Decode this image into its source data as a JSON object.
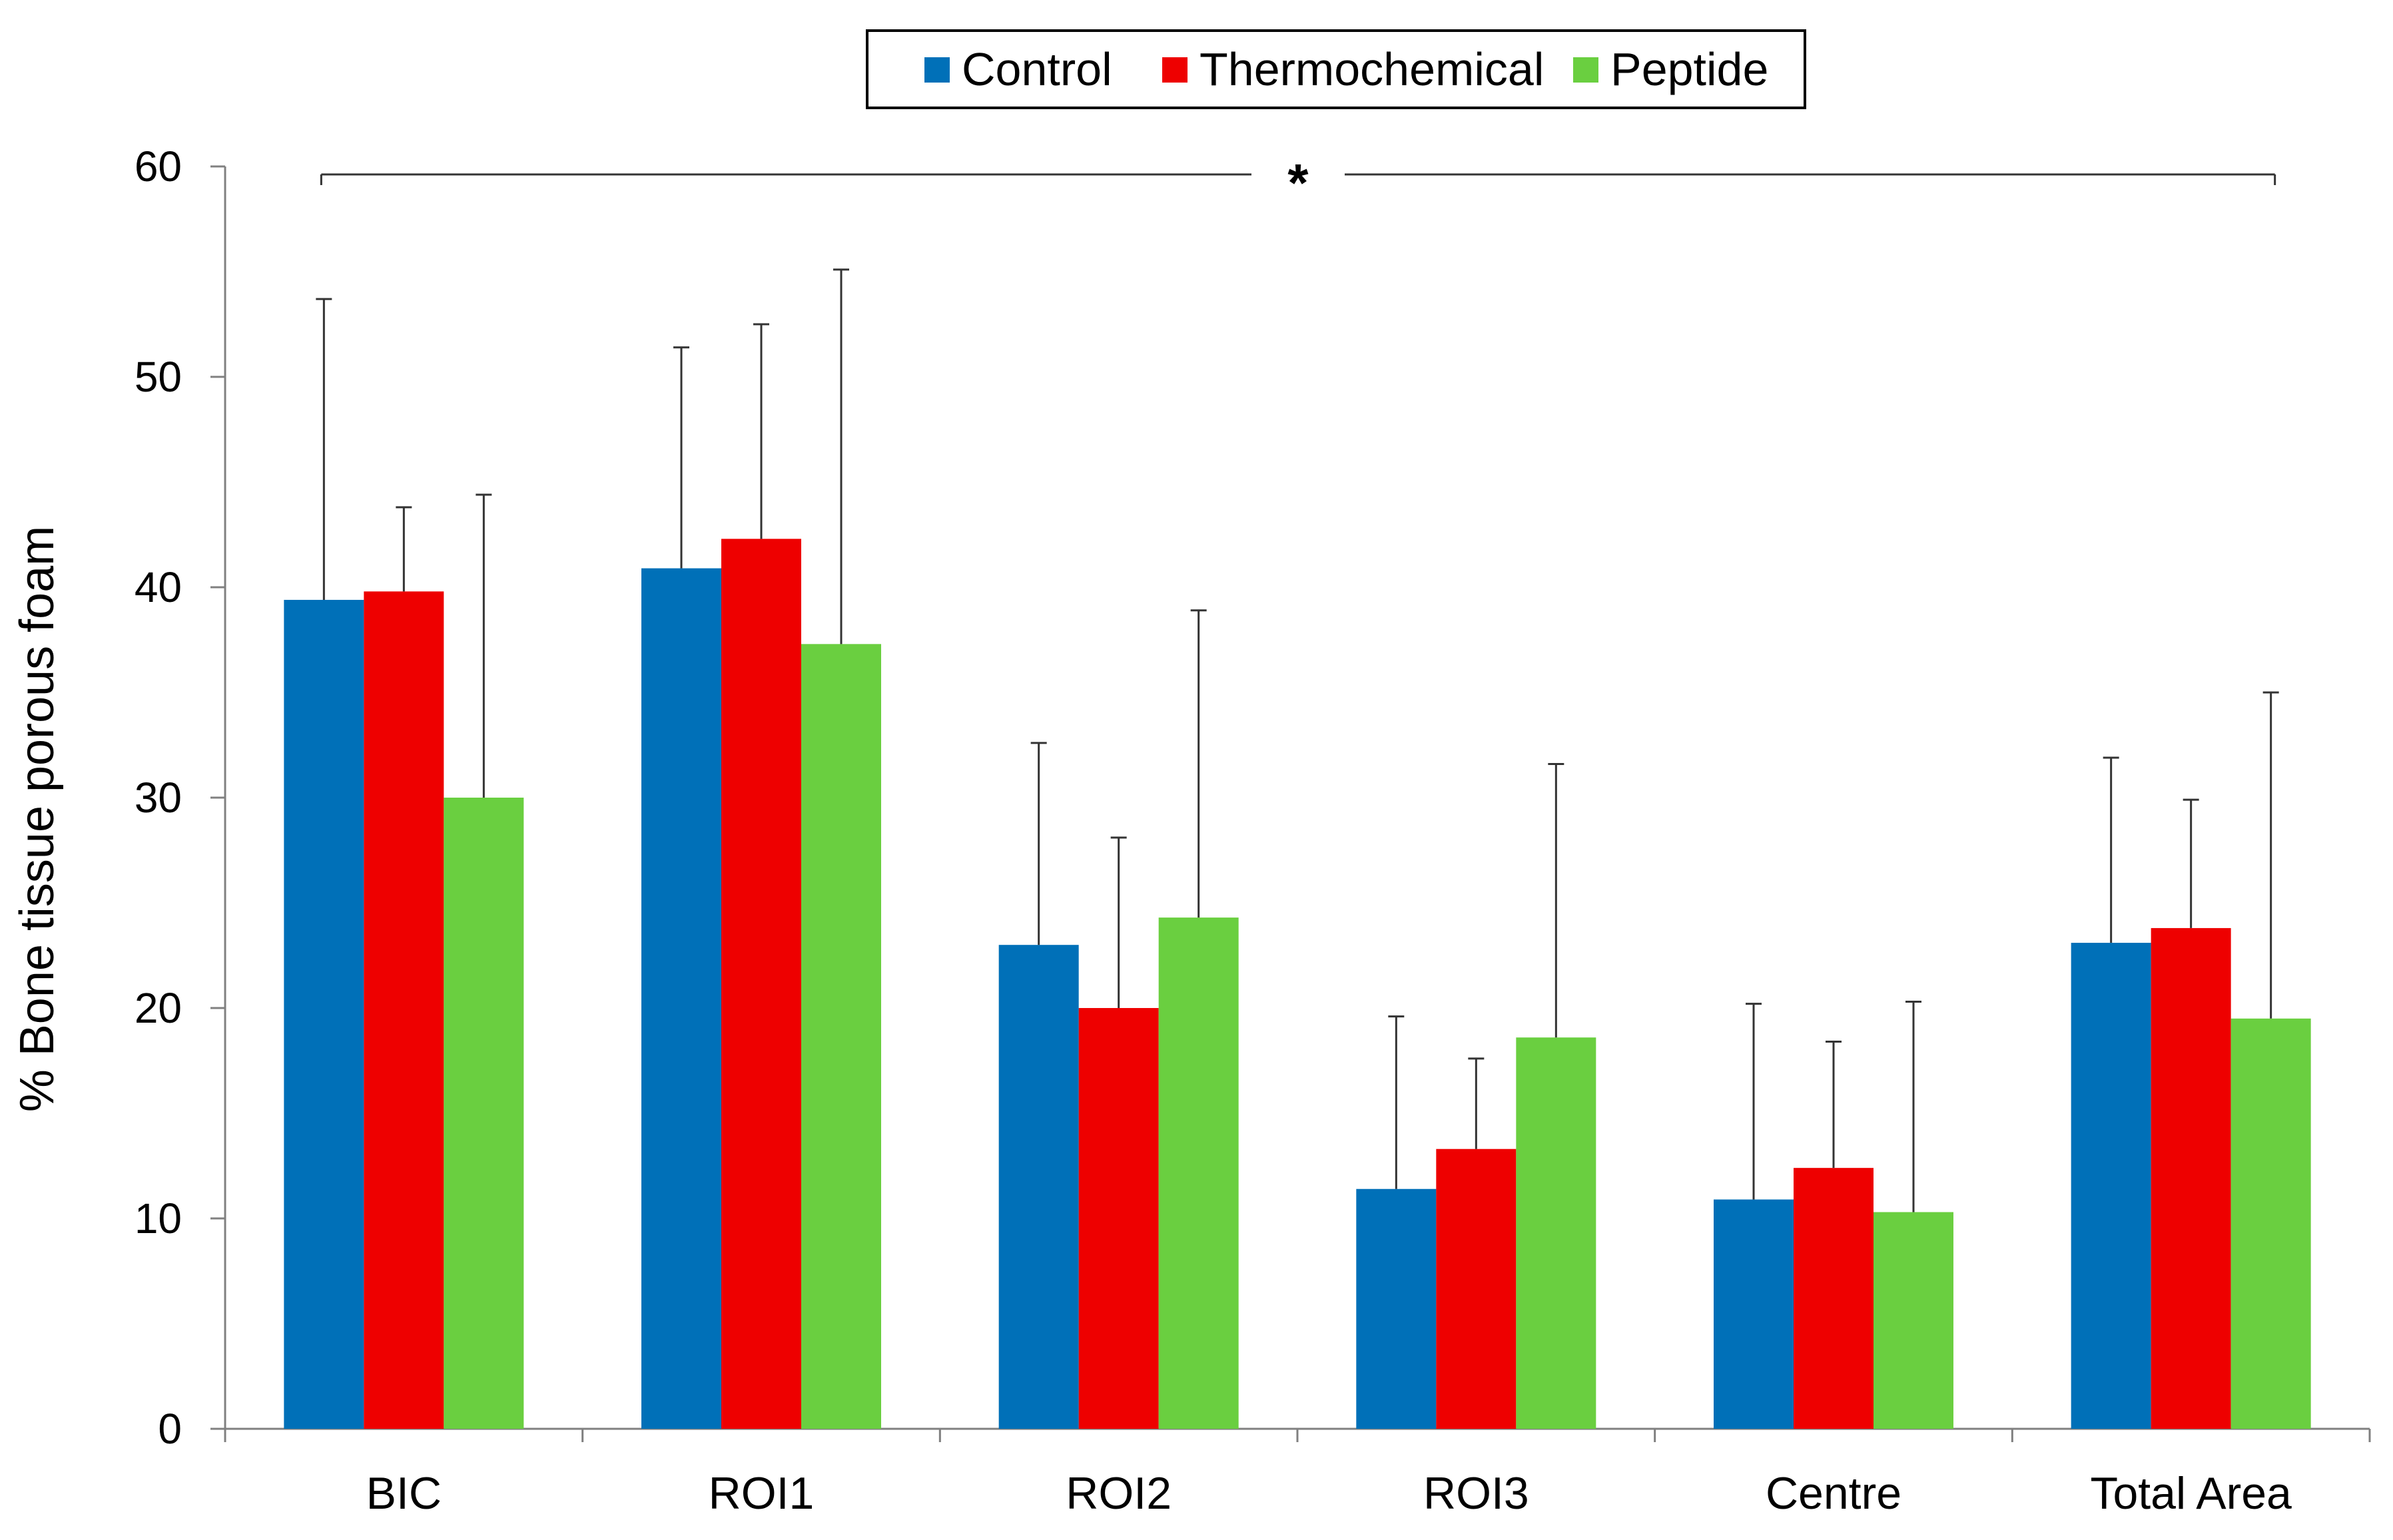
{
  "chart_data": {
    "type": "bar",
    "title": "",
    "xlabel": "",
    "ylabel": "% Bone tissue porous foam",
    "ylim": [
      0,
      60
    ],
    "yticks": [
      0,
      10,
      20,
      30,
      40,
      50,
      60
    ],
    "categories": [
      "BIC",
      "ROI1",
      "ROI2",
      "ROI3",
      "Centre",
      "Total Area"
    ],
    "series": [
      {
        "name": "Control",
        "color": "#0070B8",
        "values": [
          39.4,
          40.9,
          23.0,
          11.4,
          10.9,
          23.1
        ],
        "errors": [
          14.3,
          10.5,
          9.6,
          8.2,
          9.3,
          8.8
        ]
      },
      {
        "name": "Thermochemical",
        "color": "#EE0000",
        "values": [
          39.8,
          42.3,
          20.0,
          13.3,
          12.4,
          23.8
        ],
        "errors": [
          4.0,
          10.2,
          8.1,
          4.3,
          6.0,
          6.1
        ]
      },
      {
        "name": "Peptide",
        "color": "#6ACF40",
        "values": [
          30.0,
          37.3,
          24.3,
          18.6,
          10.3,
          19.5
        ],
        "errors": [
          14.4,
          17.8,
          14.6,
          13.0,
          10.0,
          15.5
        ]
      }
    ],
    "legend": {
      "position": "top-center"
    },
    "significance": {
      "label": "*",
      "from": "BIC",
      "to": "Total Area"
    },
    "grid": false
  }
}
